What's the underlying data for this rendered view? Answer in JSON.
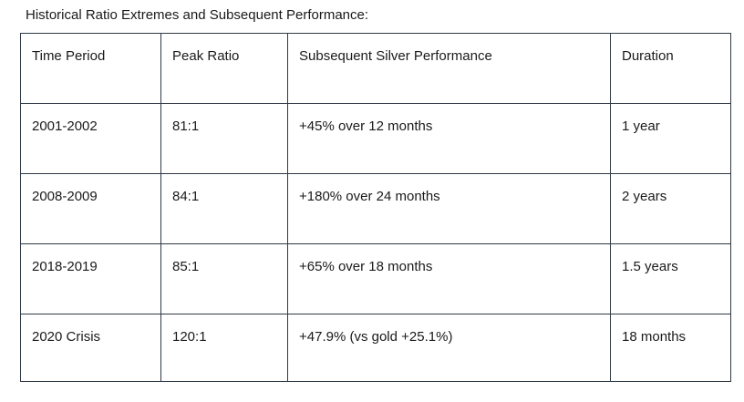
{
  "page": {
    "title": "Historical Ratio Extremes and Subsequent Performance:"
  },
  "table": {
    "headers": [
      "Time Period",
      "Peak Ratio",
      "Subsequent Silver Performance",
      "Duration"
    ],
    "rows": [
      [
        "2001-2002",
        "81:1",
        "+45% over 12 months",
        "1 year"
      ],
      [
        "2008-2009",
        "84:1",
        "+180% over 24 months",
        "2 years"
      ],
      [
        "2018-2019",
        "85:1",
        "+65% over 18 months",
        "1.5 years"
      ],
      [
        "2020 Crisis",
        "120:1",
        "+47.9% (vs gold +25.1%)",
        "18 months"
      ]
    ]
  },
  "colors": {
    "border": "#2f3a44",
    "text": "#1a1a1a",
    "background": "#ffffff"
  }
}
